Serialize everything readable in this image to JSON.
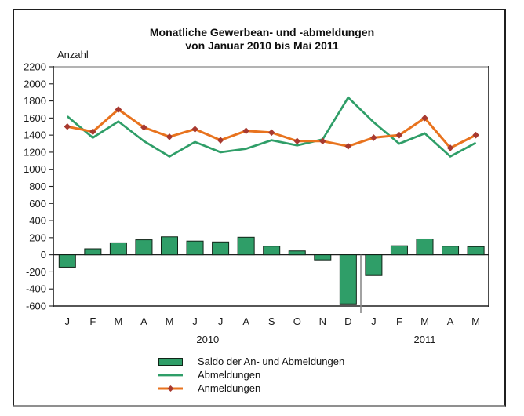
{
  "figure": {
    "title_line1": "Monatliche Gewerbean- und -abmeldungen",
    "title_line2": "von Januar 2010 bis Mai 2011",
    "y_axis_title": "Anzahl"
  },
  "chart_data": {
    "type": "bar",
    "subtype": "bar-line combo chart",
    "categories": [
      "J",
      "F",
      "M",
      "A",
      "M",
      "J",
      "J",
      "A",
      "S",
      "O",
      "N",
      "D",
      "J",
      "F",
      "M",
      "A",
      "M"
    ],
    "year_groups": [
      {
        "label": "2010",
        "from": 0,
        "to": 11
      },
      {
        "label": "2011",
        "from": 12,
        "to": 16
      }
    ],
    "ylim": [
      -600,
      2200
    ],
    "ytick_step": 200,
    "grid": "zero line only",
    "legend_position": "bottom",
    "colors": {
      "green": "#2f9e68",
      "orange": "#e8731e",
      "marker_red": "#a8392f",
      "axis": "#1f1f1f",
      "separator_gray": "#8a8a8a",
      "top_border_gray": "#9a9a9a"
    },
    "series": [
      {
        "name": "Saldo der An- und Abmeldungen",
        "type": "bar",
        "color": "#2f9e68",
        "values": [
          -145,
          70,
          140,
          175,
          210,
          160,
          150,
          205,
          100,
          45,
          -60,
          -575,
          -235,
          105,
          185,
          100,
          95
        ]
      },
      {
        "name": "Abmeldungen",
        "type": "line",
        "color": "#2f9e68",
        "values": [
          1620,
          1370,
          1560,
          1330,
          1150,
          1320,
          1200,
          1240,
          1340,
          1280,
          1350,
          1840,
          1550,
          1300,
          1420,
          1150,
          1310
        ]
      },
      {
        "name": "Anmeldungen",
        "type": "line",
        "marker": "diamond",
        "color": "#e8731e",
        "marker_color": "#a8392f",
        "values": [
          1500,
          1440,
          1700,
          1490,
          1380,
          1470,
          1340,
          1450,
          1430,
          1330,
          1330,
          1270,
          1370,
          1400,
          1600,
          1250,
          1400
        ]
      }
    ]
  }
}
